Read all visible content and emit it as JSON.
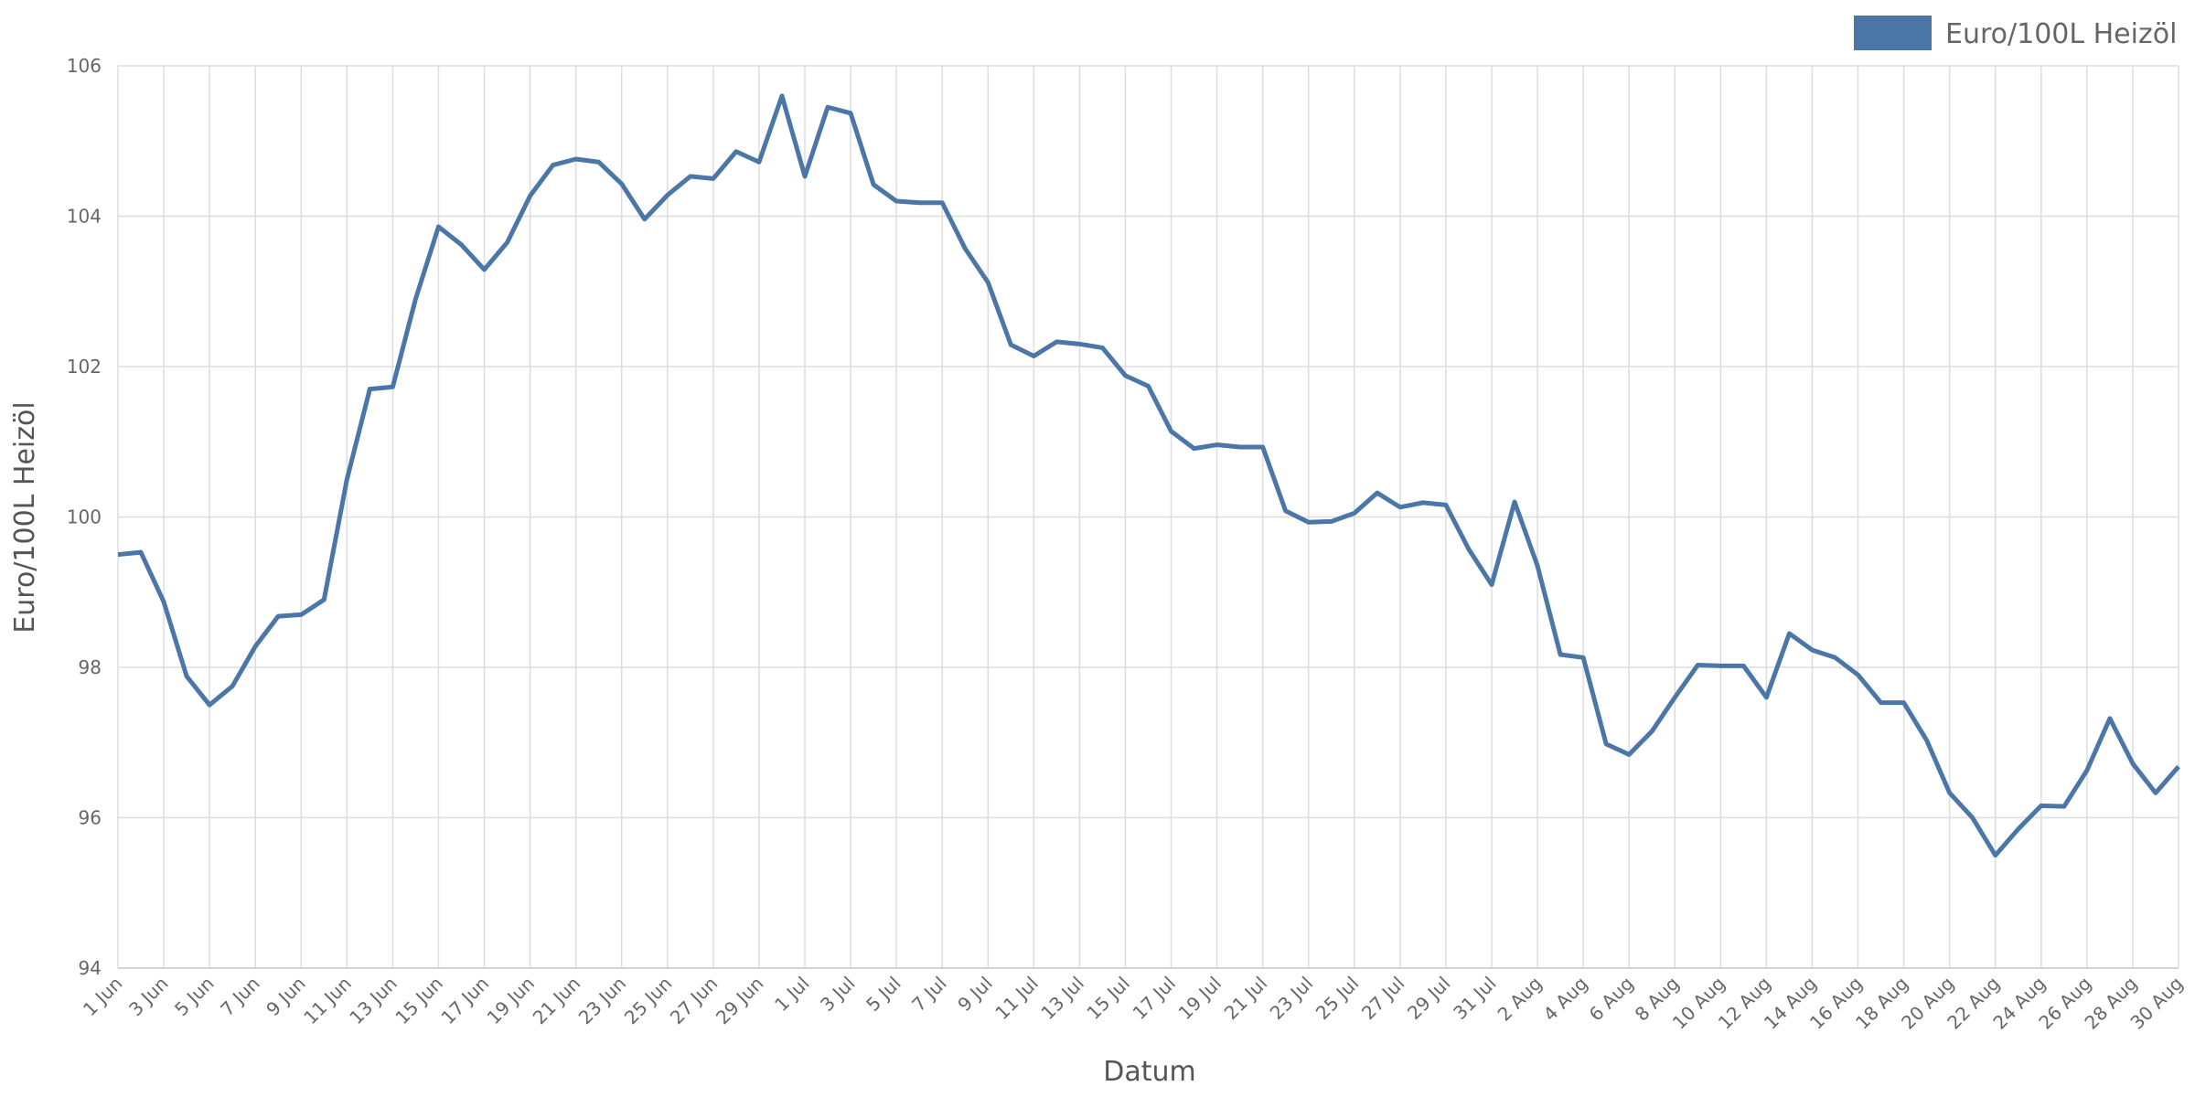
{
  "chart_data": {
    "type": "line",
    "x_label": "Datum",
    "y_label": "Euro/100L Heizöl",
    "categories": [
      "1 Jun",
      null,
      "3 Jun",
      null,
      "5 Jun",
      null,
      "7 Jun",
      null,
      "9 Jun",
      null,
      "11 Jun",
      null,
      "13 Jun",
      null,
      "15 Jun",
      null,
      "17 Jun",
      null,
      "19 Jun",
      null,
      "21 Jun",
      null,
      "23 Jun",
      null,
      "25 Jun",
      null,
      "27 Jun",
      null,
      "29 Jun",
      null,
      "1 Jul",
      null,
      "3 Jul",
      null,
      "5 Jul",
      null,
      "7 Jul",
      null,
      "9 Jul",
      null,
      "11 Jul",
      null,
      "13 Jul",
      null,
      "15 Jul",
      null,
      "17 Jul",
      null,
      "19 Jul",
      null,
      "21 Jul",
      null,
      "23 Jul",
      null,
      "25 Jul",
      null,
      "27 Jul",
      null,
      "29 Jul",
      null,
      "31 Jul",
      null,
      "2 Aug",
      null,
      "4 Aug",
      null,
      "6 Aug",
      null,
      "8 Aug",
      null,
      "10 Aug",
      null,
      "12 Aug",
      null,
      "14 Aug",
      null,
      "16 Aug",
      null,
      "18 Aug",
      null,
      "20 Aug",
      null,
      "22 Aug",
      null,
      "24 Aug",
      null,
      "26 Aug",
      null,
      "28 Aug",
      null,
      "30 Aug"
    ],
    "series": [
      {
        "name": "Euro/100L Heizöl",
        "color": "#4a76a8",
        "values": [
          99.5,
          99.53,
          98.87,
          97.88,
          97.5,
          97.75,
          98.28,
          98.68,
          98.7,
          98.9,
          100.5,
          101.7,
          101.73,
          102.9,
          103.86,
          103.62,
          103.29,
          103.65,
          104.27,
          104.68,
          104.76,
          104.72,
          104.43,
          103.96,
          104.28,
          104.53,
          104.5,
          104.86,
          104.72,
          105.6,
          104.53,
          105.45,
          105.37,
          104.42,
          104.2,
          104.18,
          104.18,
          103.57,
          103.12,
          102.29,
          102.14,
          102.33,
          102.3,
          102.25,
          101.88,
          101.74,
          101.14,
          100.91,
          100.96,
          100.93,
          100.93,
          100.08,
          99.93,
          99.94,
          100.05,
          100.32,
          100.13,
          100.19,
          100.16,
          99.57,
          99.1,
          100.2,
          99.35,
          98.17,
          98.13,
          96.98,
          96.84,
          97.15,
          97.6,
          98.03,
          98.02,
          98.02,
          97.6,
          98.45,
          98.23,
          98.13,
          97.9,
          97.53,
          97.53,
          97.03,
          96.33,
          96.0,
          95.5,
          95.85,
          96.16,
          96.15,
          96.63,
          97.32,
          96.72,
          96.33,
          96.68
        ]
      }
    ],
    "ylim": [
      94,
      106
    ],
    "yticks": [
      94,
      96,
      98,
      100,
      102,
      104,
      106
    ],
    "grid": true,
    "legend": "top-right"
  }
}
